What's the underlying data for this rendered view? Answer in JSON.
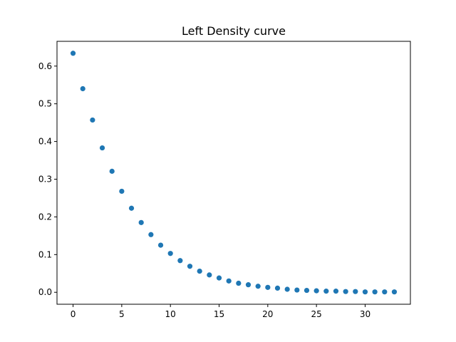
{
  "chart_data": {
    "type": "scatter",
    "title": "Left Density curve",
    "xlabel": "",
    "ylabel": "",
    "xlim": [
      -1.65,
      34.65
    ],
    "ylim": [
      -0.0317,
      0.6657
    ],
    "x_ticks": [
      0,
      5,
      10,
      15,
      20,
      25,
      30
    ],
    "y_ticks": [
      0.0,
      0.1,
      0.2,
      0.3,
      0.4,
      0.5,
      0.6
    ],
    "y_tick_labels": [
      "0.0",
      "0.1",
      "0.2",
      "0.3",
      "0.4",
      "0.5",
      "0.6"
    ],
    "grid": false,
    "legend": "none",
    "marker_color": "#1f77b4",
    "series": [
      {
        "x": [
          0,
          1,
          2,
          3,
          4,
          5,
          6,
          7,
          8,
          9,
          10,
          11,
          12,
          13,
          14,
          15,
          16,
          17,
          18,
          19,
          20,
          21,
          22,
          23,
          24,
          25,
          26,
          27,
          28,
          29,
          30,
          31,
          32,
          33
        ],
        "y": [
          0.634,
          0.54,
          0.457,
          0.383,
          0.321,
          0.268,
          0.223,
          0.185,
          0.153,
          0.125,
          0.103,
          0.084,
          0.069,
          0.056,
          0.046,
          0.038,
          0.03,
          0.024,
          0.02,
          0.016,
          0.013,
          0.011,
          0.008,
          0.006,
          0.005,
          0.004,
          0.003,
          0.003,
          0.002,
          0.002,
          0.001,
          0.001,
          0.001,
          0.001
        ]
      }
    ]
  }
}
